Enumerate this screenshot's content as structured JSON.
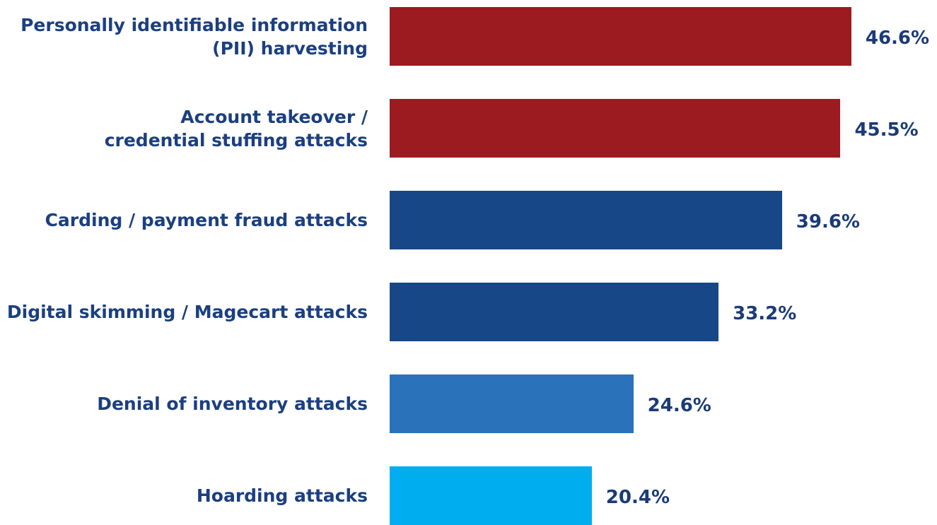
{
  "chart_data": {
    "type": "bar",
    "orientation": "horizontal",
    "categories": [
      [
        "Personally identifiable information",
        "(PII) harvesting"
      ],
      [
        "Account takeover /",
        "credential stuffing attacks"
      ],
      [
        "Carding / payment fraud attacks"
      ],
      [
        "Digital skimming / Magecart attacks"
      ],
      [
        "Denial of inventory attacks"
      ],
      [
        "Hoarding attacks"
      ]
    ],
    "values": [
      46.6,
      45.5,
      39.6,
      33.2,
      24.6,
      20.4
    ],
    "value_labels": [
      "46.6%",
      "45.5%",
      "39.6%",
      "33.2%",
      "24.6%",
      "20.4%"
    ],
    "colors": [
      "#9b1b20",
      "#9b1b20",
      "#184787",
      "#184787",
      "#2a73ba",
      "#00aeef"
    ]
  }
}
